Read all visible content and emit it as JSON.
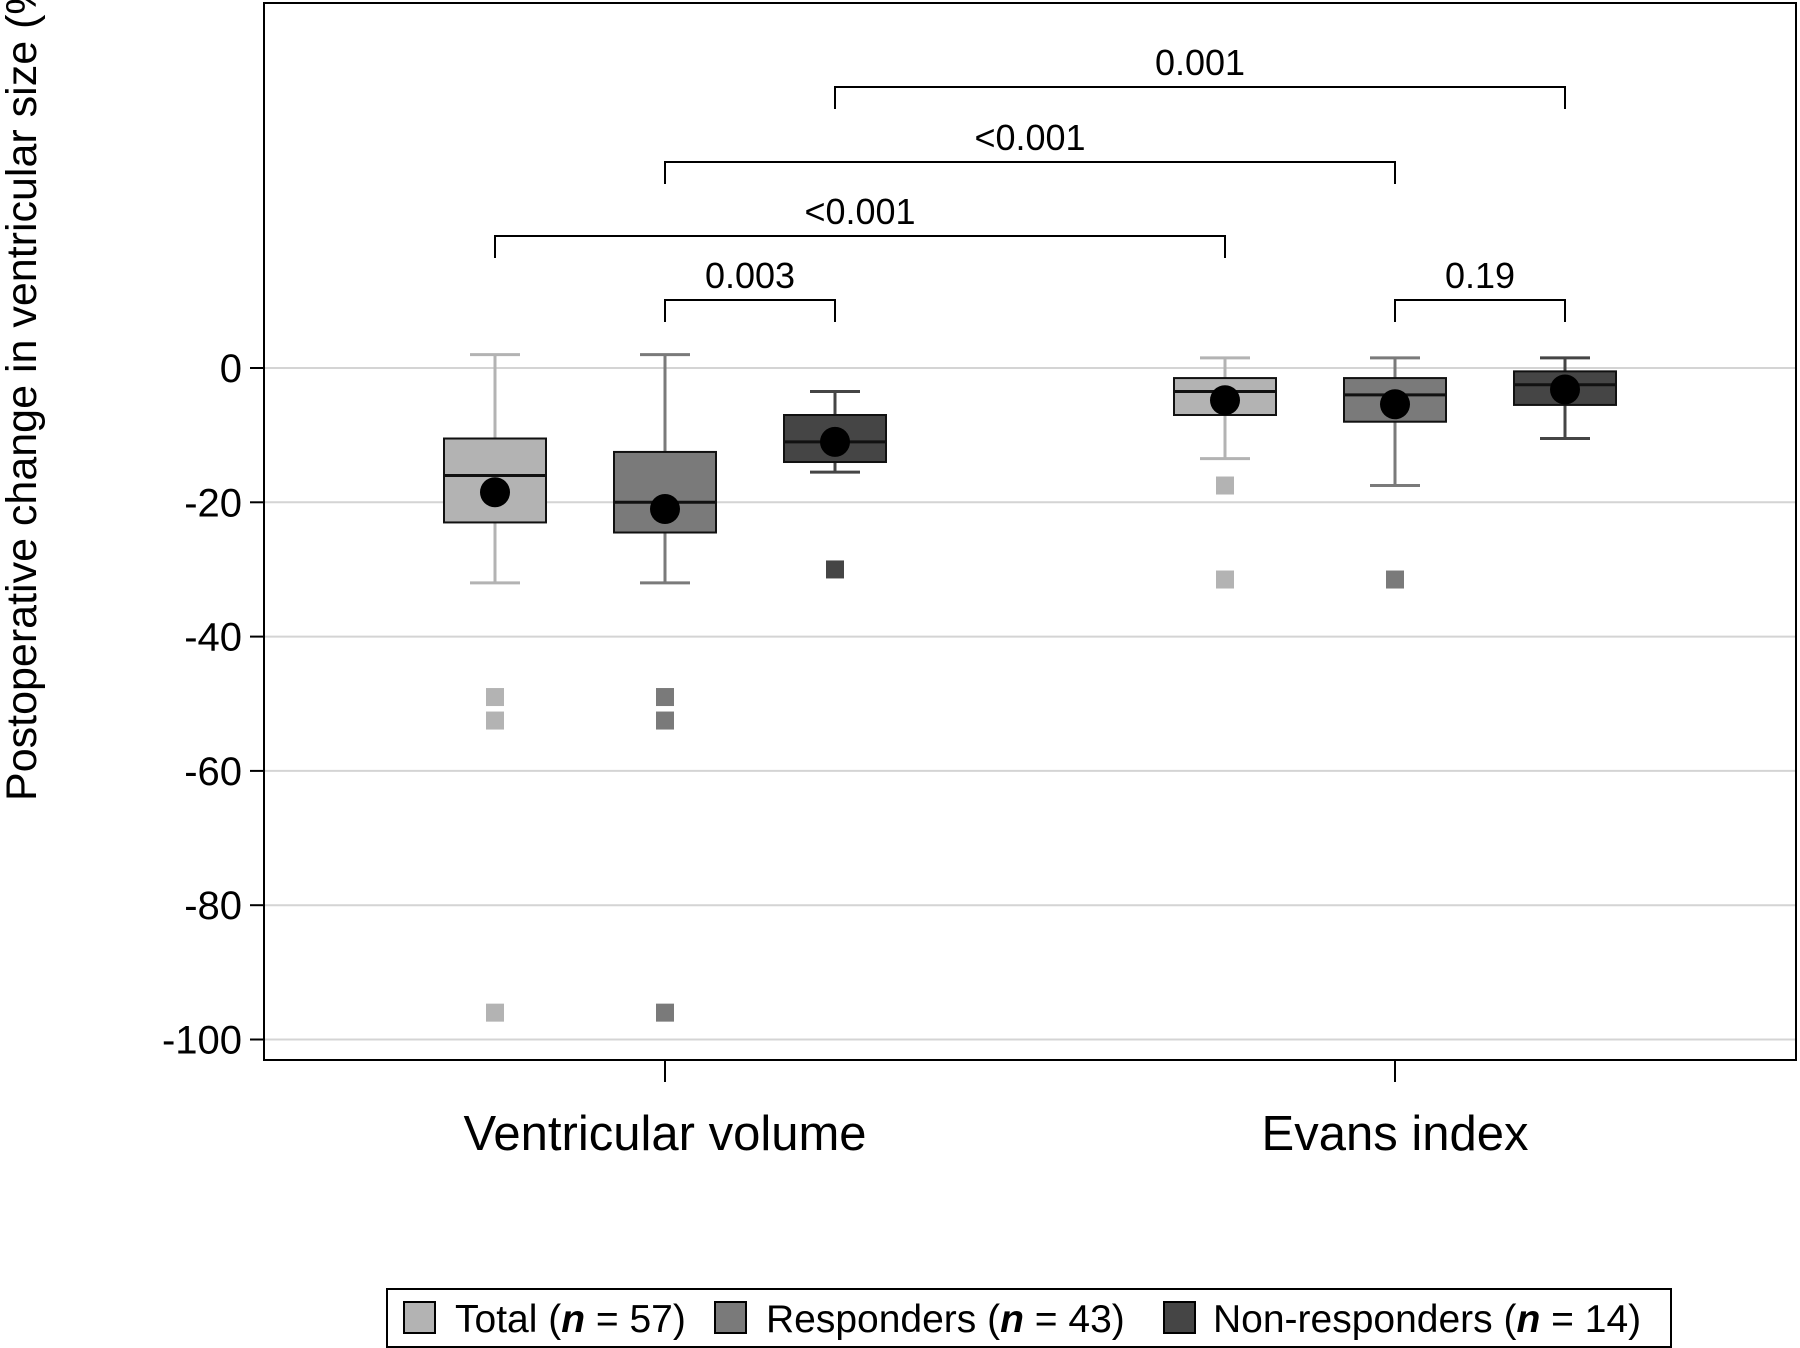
{
  "chart_data": {
    "type": "box",
    "ylabel": "Postoperative change in ventricular size (%)",
    "ylim": [
      -103,
      70
    ],
    "yticks": [
      0,
      -20,
      -40,
      -60,
      -80,
      -100
    ],
    "yticklabels": [
      "0",
      "-20",
      "-40",
      "-60",
      "-80",
      "-100"
    ],
    "grid": true,
    "categories": [
      "Ventricular volume",
      "Evans index"
    ],
    "series": [
      {
        "name": "Total",
        "n": "57",
        "color": "#b3b3b3",
        "boxes": [
          {
            "whisker_low": -32,
            "q1": -23,
            "median": -16,
            "q3": -10.5,
            "whisker_high": 2,
            "mean": -18.5,
            "outliers": [
              -49,
              -52.5,
              -96
            ]
          },
          {
            "whisker_low": -13.5,
            "q1": -7,
            "median": -3.5,
            "q3": -1.5,
            "whisker_high": 1.5,
            "mean": -4.8,
            "outliers": [
              -17.5,
              -31.5
            ]
          }
        ]
      },
      {
        "name": "Responders",
        "n": "43",
        "color": "#7a7a7a",
        "boxes": [
          {
            "whisker_low": -32,
            "q1": -24.5,
            "median": -20,
            "q3": -12.5,
            "whisker_high": 2,
            "mean": -21,
            "outliers": [
              -49,
              -52.5,
              -96
            ]
          },
          {
            "whisker_low": -17.5,
            "q1": -8,
            "median": -4,
            "q3": -1.5,
            "whisker_high": 1.5,
            "mean": -5.4,
            "outliers": [
              -31.5
            ]
          }
        ]
      },
      {
        "name": "Non-responders",
        "n": "14",
        "color": "#454545",
        "boxes": [
          {
            "whisker_low": -15.5,
            "q1": -14,
            "median": -11,
            "q3": -7,
            "whisker_high": -3.5,
            "mean": -11,
            "outliers": [
              -30
            ]
          },
          {
            "whisker_low": -10.5,
            "q1": -5.5,
            "median": -2.5,
            "q3": -0.5,
            "whisker_high": 1.5,
            "mean": -3.2,
            "outliers": []
          }
        ]
      }
    ],
    "comparisons": [
      {
        "label": "0.001",
        "from": [
          0,
          2
        ],
        "to": [
          1,
          2
        ]
      },
      {
        "label": "<0.001",
        "from": [
          0,
          1
        ],
        "to": [
          1,
          1
        ]
      },
      {
        "label": "<0.001",
        "from": [
          0,
          0
        ],
        "to": [
          1,
          0
        ]
      },
      {
        "label": "0.003",
        "from": [
          0,
          1
        ],
        "to": [
          0,
          2
        ]
      },
      {
        "label": "0.19",
        "from": [
          1,
          1
        ],
        "to": [
          1,
          2
        ]
      }
    ],
    "legend": {
      "position": "bottom",
      "entries": [
        {
          "prefix": "Total (",
          "n_symbol": "n",
          "equals": " = ",
          "n": "57",
          "suffix": ")"
        },
        {
          "prefix": "Responders (",
          "n_symbol": "n",
          "equals": " = ",
          "n": "43",
          "suffix": ")"
        },
        {
          "prefix": "Non-responders (",
          "n_symbol": "n",
          "equals": " = ",
          "n": "14",
          "suffix": ")"
        }
      ]
    }
  }
}
